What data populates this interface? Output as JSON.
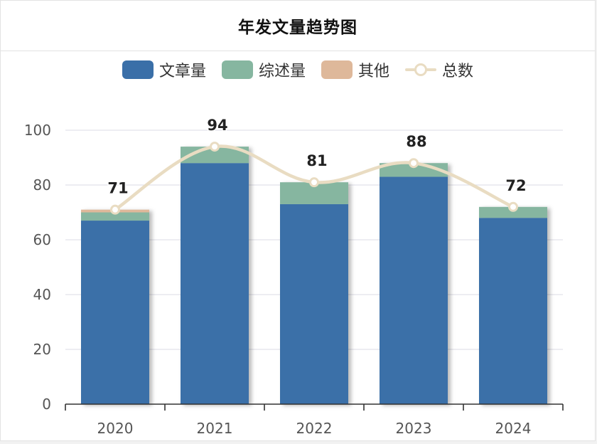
{
  "title": "年发文量趋势图",
  "chart_data": {
    "type": "bar",
    "stacked": true,
    "categories": [
      "2020",
      "2021",
      "2022",
      "2023",
      "2024"
    ],
    "series": [
      {
        "name": "文章量",
        "type": "bar",
        "color": "#3a6fa8",
        "values": [
          67,
          88,
          73,
          83,
          68
        ]
      },
      {
        "name": "综述量",
        "type": "bar",
        "color": "#86b6a0",
        "values": [
          3,
          6,
          8,
          5,
          4
        ]
      },
      {
        "name": "其他",
        "type": "bar",
        "color": "#deb89a",
        "values": [
          1,
          0,
          0,
          0,
          0
        ]
      },
      {
        "name": "总数",
        "type": "line",
        "smooth": true,
        "color": "#e9dcc2",
        "values": [
          71,
          94,
          81,
          88,
          72
        ]
      }
    ],
    "data_labels": [
      "71",
      "94",
      "81",
      "88",
      "72"
    ],
    "yticks": [
      0,
      20,
      40,
      60,
      80,
      100
    ],
    "ylim": [
      0,
      100
    ],
    "grid": true,
    "legend_position": "top"
  }
}
